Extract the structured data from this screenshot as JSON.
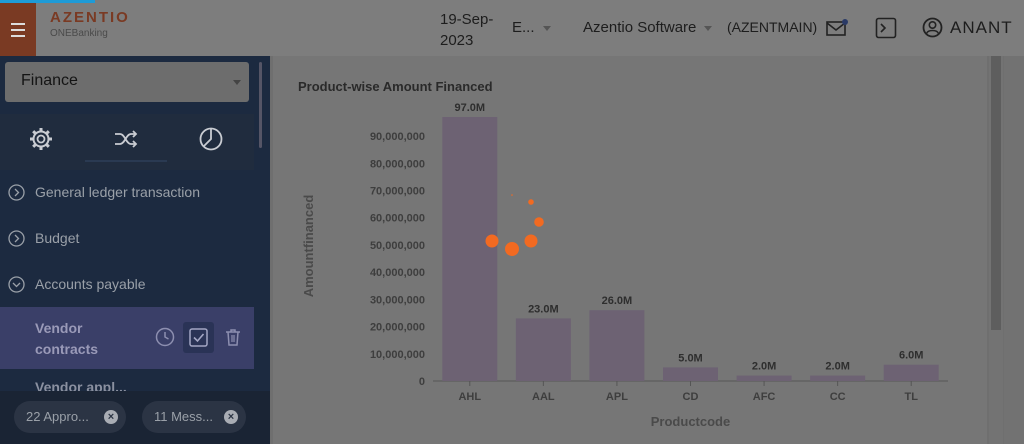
{
  "header": {
    "brand_name": "AZENTIO",
    "brand_sub": "ONEBanking",
    "date_line1": "19-Sep-",
    "date_line2": "2023",
    "entity": "E...",
    "company": "Azentio Software",
    "branch": "(AZENTMAIN)",
    "username": "ANANT",
    "icons": [
      "menu-icon",
      "mail-icon",
      "terminal-icon",
      "user-icon"
    ]
  },
  "sidebar": {
    "module": "Finance",
    "tabs": [
      "gear-icon",
      "shuffle-icon",
      "pie-chart-icon"
    ],
    "items": [
      {
        "label": "General ledger transaction",
        "icon": "chevron-right-circle-icon"
      },
      {
        "label": "Budget",
        "icon": "chevron-right-circle-icon"
      },
      {
        "label": "Accounts payable",
        "icon": "chevron-down-circle-icon"
      }
    ],
    "active_item": {
      "line1": "Vendor",
      "line2": "contracts",
      "actions": [
        "clock-icon",
        "checkbox-icon",
        "trash-icon"
      ]
    },
    "cut_item": "Vendor appl...",
    "chips": [
      {
        "label": "22 Appro...",
        "close": "×"
      },
      {
        "label": "11 Mess...",
        "close": "×"
      }
    ]
  },
  "chart_data": {
    "type": "bar",
    "title": "Product-wise Amount Financed",
    "xlabel": "Productcode",
    "ylabel": "Amountfinanced",
    "categories": [
      "AHL",
      "AAL",
      "APL",
      "CD",
      "AFC",
      "CC",
      "TL"
    ],
    "values": [
      97000000,
      23000000,
      26000000,
      5000000,
      2000000,
      2000000,
      6000000
    ],
    "data_labels": [
      "97.0M",
      "23.0M",
      "26.0M",
      "5.0M",
      "2.0M",
      "2.0M",
      "6.0M"
    ],
    "yticks": [
      "0",
      "10,000,000",
      "20,000,000",
      "30,000,000",
      "40,000,000",
      "50,000,000",
      "60,000,000",
      "70,000,000",
      "80,000,000",
      "90,000,000"
    ],
    "ytick_values": [
      0,
      10000000,
      20000000,
      30000000,
      40000000,
      50000000,
      60000000,
      70000000,
      80000000,
      90000000
    ],
    "ylim": [
      0,
      97000000
    ],
    "bar_color": "#6d6273",
    "grid": false
  },
  "colors": {
    "accent": "#7a3a23",
    "sidebar_bg": "#1c2a40",
    "active_item_bg": "#3a3f68",
    "spinner": "#f26a21",
    "topline": "#1e9bd7"
  }
}
